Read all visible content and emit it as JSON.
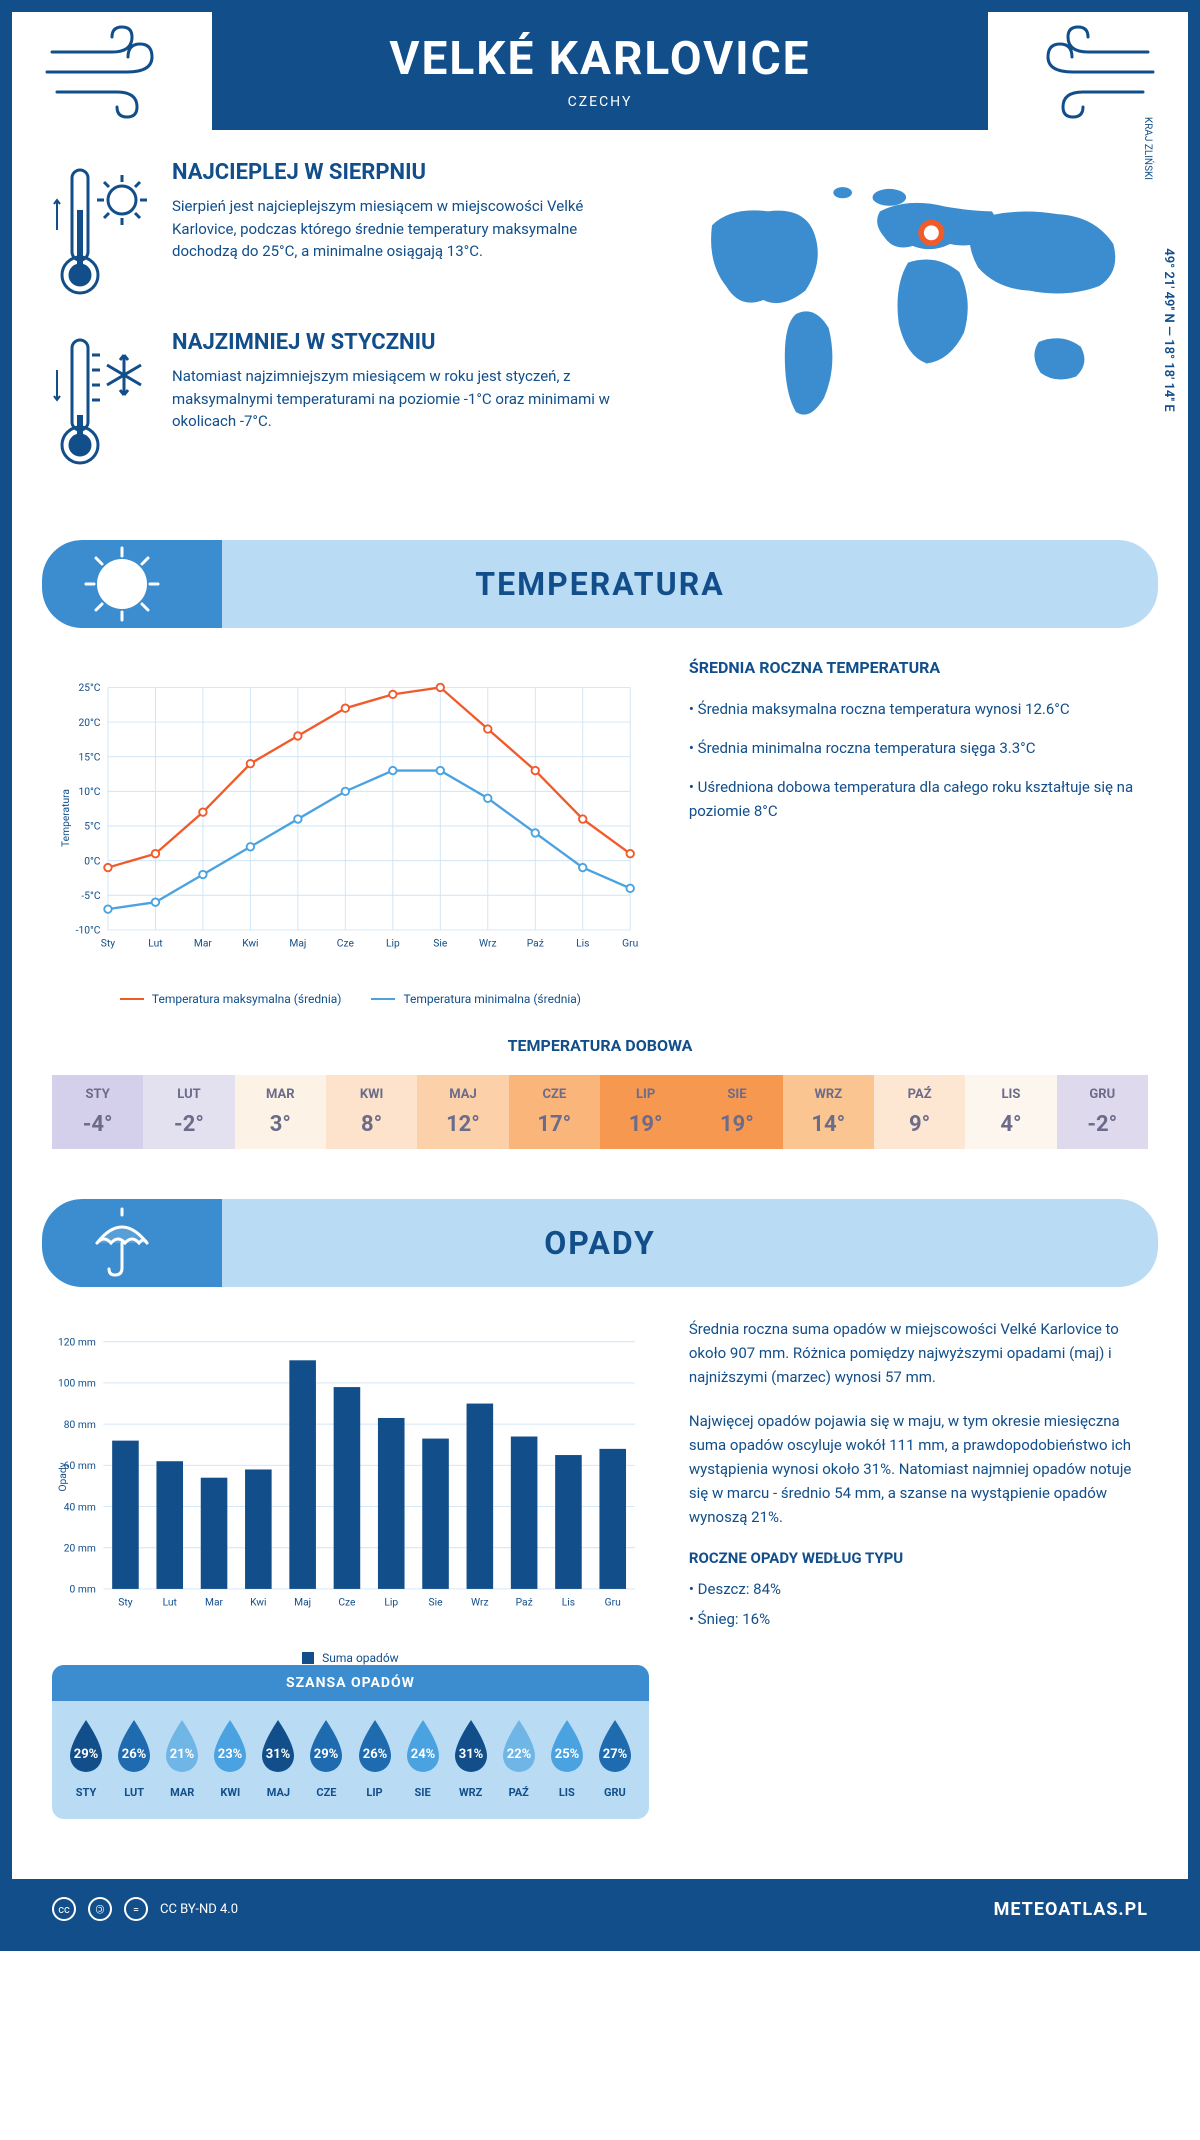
{
  "header": {
    "title": "VELKÉ KARLOVICE",
    "subtitle": "CZECHY"
  },
  "coords": "49° 21' 49'' N — 18° 18' 14'' E",
  "region": "KRAJ ZLIŃSKI",
  "facts": {
    "warm": {
      "title": "NAJCIEPLEJ W SIERPNIU",
      "text": "Sierpień jest najcieplejszym miesiącem w miejscowości Velké Karlovice, podczas którego średnie temperatury maksymalne dochodzą do 25°C, a minimalne osiągają 13°C."
    },
    "cold": {
      "title": "NAJZIMNIEJ W STYCZNIU",
      "text": "Natomiast najzimniejszym miesiącem w roku jest styczeń, z maksymalnymi temperaturami na poziomie -1°C oraz minimami w okolicach -7°C."
    }
  },
  "temp_section": {
    "heading": "TEMPERATURA",
    "side_title": "ŚREDNIA ROCZNA TEMPERATURA",
    "side_points": [
      "• Średnia maksymalna roczna temperatura wynosi 12.6°C",
      "• Średnia minimalna roczna temperatura sięga 3.3°C",
      "• Uśredniona dobowa temperatura dla całego roku kształtuje się na poziomie 8°C"
    ],
    "chart": {
      "months": [
        "Sty",
        "Lut",
        "Mar",
        "Kwi",
        "Maj",
        "Cze",
        "Lip",
        "Sie",
        "Wrz",
        "Paź",
        "Lis",
        "Gru"
      ],
      "max": [
        -1,
        1,
        7,
        14,
        18,
        22,
        24,
        25,
        19,
        13,
        6,
        1
      ],
      "min": [
        -7,
        -6,
        -2,
        2,
        6,
        10,
        13,
        13,
        9,
        4,
        -1,
        -4
      ],
      "max_color": "#f15a29",
      "min_color": "#4aa3e0",
      "grid_color": "#d0e4f5",
      "y_min": -10,
      "y_max": 25,
      "y_step": 5,
      "y_label": "Temperatura",
      "legend_max": "Temperatura maksymalna (średnia)",
      "legend_min": "Temperatura minimalna (średnia)"
    },
    "dobowa_title": "TEMPERATURA DOBOWA",
    "dobowa": {
      "months": [
        "STY",
        "LUT",
        "MAR",
        "KWI",
        "MAJ",
        "CZE",
        "LIP",
        "SIE",
        "WRZ",
        "PAŹ",
        "LIS",
        "GRU"
      ],
      "values": [
        "-4°",
        "-2°",
        "3°",
        "8°",
        "12°",
        "17°",
        "19°",
        "19°",
        "14°",
        "9°",
        "4°",
        "-2°"
      ],
      "colors": [
        "#d4cfea",
        "#e3e0f0",
        "#fdf2e6",
        "#fde3cb",
        "#fcd0a9",
        "#f9b57a",
        "#f79850",
        "#f79850",
        "#fbc591",
        "#fde7d2",
        "#fdf6ef",
        "#ded9ed"
      ],
      "text_color": "#6b6b8a"
    }
  },
  "opady_section": {
    "heading": "OPADY",
    "chart": {
      "months": [
        "Sty",
        "Lut",
        "Mar",
        "Kwi",
        "Maj",
        "Cze",
        "Lip",
        "Sie",
        "Wrz",
        "Paź",
        "Lis",
        "Gru"
      ],
      "values": [
        72,
        62,
        54,
        58,
        111,
        98,
        83,
        73,
        90,
        74,
        65,
        68
      ],
      "bar_color": "#114e8a",
      "grid_color": "#d0e4f5",
      "y_max": 120,
      "y_step": 20,
      "y_label": "Opady",
      "legend": "Suma opadów"
    },
    "side_text1": "Średnia roczna suma opadów w miejscowości Velké Karlovice to około 907 mm. Różnica pomiędzy najwyższymi opadami (maj) i najniższymi (marzec) wynosi 57 mm.",
    "side_text2": "Najwięcej opadów pojawia się w maju, w tym okresie miesięczna suma opadów oscyluje wokół 111 mm, a prawdopodobieństwo ich wystąpienia wynosi około 31%. Natomiast najmniej opadów notuje się w marcu - średnio 54 mm, a szanse na wystąpienie opadów wynoszą 21%.",
    "type_title": "ROCZNE OPADY WEDŁUG TYPU",
    "type_points": [
      "• Deszcz: 84%",
      "• Śnieg: 16%"
    ],
    "szansa": {
      "title": "SZANSA OPADÓW",
      "months": [
        "STY",
        "LUT",
        "MAR",
        "KWI",
        "MAJ",
        "CZE",
        "LIP",
        "SIE",
        "WRZ",
        "PAŹ",
        "LIS",
        "GRU"
      ],
      "values": [
        "29%",
        "26%",
        "21%",
        "23%",
        "31%",
        "29%",
        "26%",
        "24%",
        "31%",
        "22%",
        "25%",
        "27%"
      ],
      "colors": [
        "#114e8a",
        "#1e6bb0",
        "#6fb5e6",
        "#4aa3e0",
        "#114e8a",
        "#1e6bb0",
        "#1e6bb0",
        "#4aa3e0",
        "#114e8a",
        "#6fb5e6",
        "#4aa3e0",
        "#1e6bb0"
      ]
    }
  },
  "footer": {
    "license": "CC BY-ND 4.0",
    "site": "METEOATLAS.PL"
  }
}
